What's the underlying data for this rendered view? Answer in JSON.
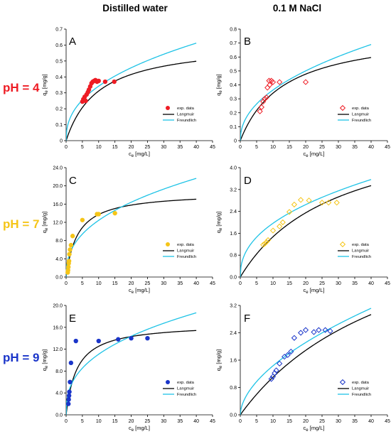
{
  "column_titles": [
    "Distilled water",
    "0.1 M NaCl"
  ],
  "row_labels": [
    {
      "text": "pH = 4",
      "color": "#ee1c24"
    },
    {
      "text": "pH = 7",
      "color": "#f5c518"
    },
    {
      "text": "pH = 9",
      "color": "#1a35c9"
    }
  ],
  "model_colors": {
    "langmuir": "#000000",
    "freundlich": "#1ec3e6"
  },
  "chart_data": [
    {
      "panel": "A",
      "type": "scatter",
      "marker": "filled-circle",
      "color": "#ee1c24",
      "xlabel": "c_e [mg/L]",
      "ylabel": "q_e [mg/g]",
      "xlim": [
        0,
        45
      ],
      "ylim": [
        0,
        0.7
      ],
      "xticks": [
        0,
        5,
        10,
        15,
        20,
        25,
        30,
        35,
        40,
        45
      ],
      "yticks": [
        0.0,
        0.1,
        0.2,
        0.3,
        0.4,
        0.5,
        0.6,
        0.7
      ],
      "ytick_labels": [
        "0",
        "0.1",
        "0.2",
        "0.3",
        "0.4",
        "0.5",
        "0.6",
        "0.7"
      ],
      "legend": [
        "exp. data",
        "Langmuir",
        "Freundlich"
      ],
      "legend_position": "bottom-right",
      "series": [
        {
          "name": "exp. data",
          "x": [
            5.0,
            5.3,
            5.7,
            6.0,
            6.3,
            6.7,
            7.0,
            7.4,
            7.8,
            8.2,
            8.6,
            9.0,
            9.5,
            10.0,
            12.0,
            14.8
          ],
          "y": [
            0.245,
            0.26,
            0.275,
            0.25,
            0.29,
            0.305,
            0.32,
            0.34,
            0.36,
            0.37,
            0.375,
            0.38,
            0.37,
            0.375,
            0.37,
            0.37
          ]
        },
        {
          "name": "Langmuir",
          "model": "langmuir",
          "qmax": 0.623,
          "K": 0.1
        },
        {
          "name": "Freundlich",
          "model": "freundlich",
          "Kf": 0.13,
          "n": 0.42
        }
      ]
    },
    {
      "panel": "B",
      "type": "scatter",
      "marker": "open-diamond",
      "color": "#ee1c24",
      "xlabel": "c_e [mg/L]",
      "ylabel": "q_e [mg/g]",
      "xlim": [
        0,
        45
      ],
      "ylim": [
        0,
        0.8
      ],
      "xticks": [
        0,
        5,
        10,
        15,
        20,
        25,
        30,
        35,
        40,
        45
      ],
      "yticks": [
        0.0,
        0.1,
        0.2,
        0.3,
        0.4,
        0.5,
        0.6,
        0.7,
        0.8
      ],
      "ytick_labels": [
        "0",
        "0.1",
        "0.2",
        "0.3",
        "0.4",
        "0.5",
        "0.6",
        "0.7",
        "0.8"
      ],
      "legend": [
        "exp. data",
        "Langmuir",
        "Freundlich"
      ],
      "legend_position": "bottom-right",
      "series": [
        {
          "name": "exp. data",
          "x": [
            6.0,
            6.5,
            7.0,
            7.5,
            8.0,
            8.3,
            8.8,
            9.0,
            9.5,
            10.0,
            12.0,
            20.0
          ],
          "y": [
            0.21,
            0.24,
            0.28,
            0.3,
            0.31,
            0.38,
            0.43,
            0.4,
            0.43,
            0.42,
            0.42,
            0.42
          ]
        },
        {
          "name": "Langmuir",
          "model": "langmuir",
          "qmax": 0.795,
          "K": 0.075
        },
        {
          "name": "Freundlich",
          "model": "freundlich",
          "Kf": 0.125,
          "n": 0.463
        }
      ]
    },
    {
      "panel": "C",
      "type": "scatter",
      "marker": "filled-circle",
      "color": "#f5c518",
      "xlabel": "c_e [mg/L]",
      "ylabel": "q_e [mg/g]",
      "xlim": [
        0,
        45
      ],
      "ylim": [
        0,
        24
      ],
      "xticks": [
        0,
        5,
        10,
        15,
        20,
        25,
        30,
        35,
        40,
        45
      ],
      "yticks": [
        0,
        4,
        8,
        12,
        16,
        20,
        24
      ],
      "ytick_labels": [
        "0.0",
        "4.0",
        "8.0",
        "12.0",
        "16.0",
        "20.0",
        "24.0"
      ],
      "legend": [
        "exp. data",
        "Langmuir",
        "Freundlich"
      ],
      "legend_position": "bottom-right",
      "series": [
        {
          "name": "exp. data",
          "x": [
            0.5,
            0.6,
            0.7,
            0.8,
            0.9,
            1.0,
            1.2,
            1.5,
            2.0,
            5.0,
            9.5,
            10.0,
            15.0
          ],
          "y": [
            1.0,
            1.5,
            2.2,
            3.0,
            3.5,
            5.0,
            6.0,
            7.0,
            9.0,
            12.5,
            13.8,
            13.8,
            14.0
          ]
        },
        {
          "name": "Langmuir",
          "model": "langmuir",
          "qmax": 18.6,
          "K": 0.28
        },
        {
          "name": "Freundlich",
          "model": "freundlich",
          "Kf": 4.95,
          "n": 0.4
        }
      ]
    },
    {
      "panel": "D",
      "type": "scatter",
      "marker": "open-diamond",
      "color": "#f5c518",
      "xlabel": "c_e [mg/L]",
      "ylabel": "q_e [mg/g]",
      "xlim": [
        0,
        45
      ],
      "ylim": [
        0,
        4.0
      ],
      "xticks": [
        0,
        5,
        10,
        15,
        20,
        25,
        30,
        35,
        40,
        45
      ],
      "yticks": [
        0.0,
        0.8,
        1.6,
        2.4,
        3.2,
        4.0
      ],
      "ytick_labels": [
        "0.0",
        "0.8",
        "1.6",
        "2.4",
        "3.2",
        "4.0"
      ],
      "legend": [
        "exp. data",
        "Langmuir",
        "Freundlich"
      ],
      "legend_position": "bottom-right",
      "series": [
        {
          "name": "exp. data",
          "x": [
            7.0,
            7.5,
            8.0,
            8.5,
            10.0,
            12.0,
            13.0,
            15.0,
            16.5,
            18.5,
            21.0,
            25.0,
            27.0,
            29.5
          ],
          "y": [
            1.18,
            1.22,
            1.28,
            1.35,
            1.7,
            1.85,
            2.0,
            2.38,
            2.65,
            2.82,
            2.8,
            2.72,
            2.72,
            2.72
          ]
        },
        {
          "name": "Langmuir",
          "model": "langmuir",
          "qmax": 5.8,
          "K": 0.034
        },
        {
          "name": "Freundlich",
          "model": "freundlich",
          "Kf": 0.73,
          "n": 0.43
        }
      ]
    },
    {
      "panel": "E",
      "type": "scatter",
      "marker": "filled-circle",
      "color": "#1a35c9",
      "xlabel": "c_e [mg/L]",
      "ylabel": "q_e [mg/g]",
      "xlim": [
        0,
        45
      ],
      "ylim": [
        0,
        20
      ],
      "xticks": [
        0,
        5,
        10,
        15,
        20,
        25,
        30,
        35,
        40,
        45
      ],
      "yticks": [
        0,
        4,
        8,
        12,
        16,
        20
      ],
      "ytick_labels": [
        "0.0",
        "4.0",
        "8.0",
        "12.0",
        "16.0",
        "20.0"
      ],
      "legend": [
        "exp. data",
        "Langmuir",
        "Freundlich"
      ],
      "legend_position": "bottom-right",
      "series": [
        {
          "name": "exp. data",
          "x": [
            0.7,
            0.8,
            0.9,
            1.0,
            1.2,
            1.5,
            3.0,
            10.0,
            16.0,
            20.0,
            25.0
          ],
          "y": [
            2.0,
            2.8,
            3.5,
            4.2,
            6.0,
            9.5,
            13.5,
            13.5,
            13.8,
            14.0,
            14.0
          ]
        },
        {
          "name": "Langmuir",
          "model": "langmuir",
          "qmax": 16.7,
          "K": 0.3
        },
        {
          "name": "Freundlich",
          "model": "freundlich",
          "Kf": 4.66,
          "n": 0.376
        }
      ]
    },
    {
      "panel": "F",
      "type": "scatter",
      "marker": "open-diamond",
      "color": "#1a35c9",
      "xlabel": "c_e [mg/L]",
      "ylabel": "q_e [mg/g]",
      "xlim": [
        0,
        45
      ],
      "ylim": [
        0,
        3.2
      ],
      "xticks": [
        0,
        5,
        10,
        15,
        20,
        25,
        30,
        35,
        40,
        45
      ],
      "yticks": [
        0.0,
        0.8,
        1.6,
        2.4,
        3.2
      ],
      "ytick_labels": [
        "0.0",
        "0.8",
        "1.6",
        "2.4",
        "3.2"
      ],
      "legend": [
        "exp. data",
        "Langmuir",
        "Freundlich"
      ],
      "legend_position": "bottom-right",
      "series": [
        {
          "name": "exp. data",
          "x": [
            9.5,
            10.0,
            10.5,
            11.0,
            12.0,
            13.5,
            14.5,
            15.5,
            16.5,
            18.5,
            20.0,
            22.5,
            24.0,
            26.0,
            27.5
          ],
          "y": [
            1.05,
            1.12,
            1.22,
            1.3,
            1.5,
            1.7,
            1.75,
            1.85,
            2.25,
            2.4,
            2.48,
            2.42,
            2.48,
            2.48,
            2.45
          ]
        },
        {
          "name": "Langmuir",
          "model": "langmuir",
          "qmax": 6.6,
          "K": 0.02
        },
        {
          "name": "Freundlich",
          "model": "freundlich",
          "Kf": 0.395,
          "n": 0.56
        }
      ]
    }
  ]
}
